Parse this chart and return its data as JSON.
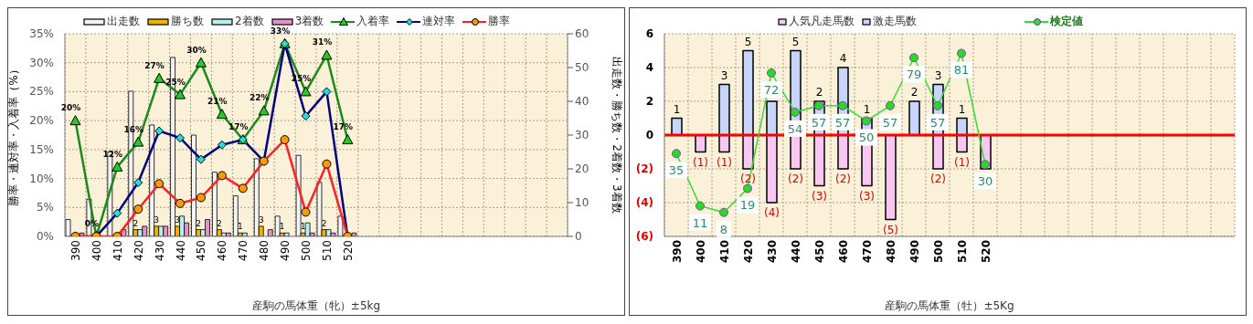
{
  "chart_data": [
    {
      "type": "bar",
      "xlabel": "産駒の馬体重（牝）±5kg",
      "ylabel": "勝率・連対率・入着率（%）",
      "y2label": "出走数・勝ち数・2着数・3着数",
      "categories": [
        "390",
        "400",
        "410",
        "420",
        "430",
        "440",
        "450",
        "460",
        "470",
        "480",
        "490",
        "500",
        "510",
        "520",
        null,
        null,
        null,
        null,
        null,
        null,
        null,
        null,
        null,
        null
      ],
      "ylim": [
        0,
        35
      ],
      "yticks": [
        {
          "value": 0,
          "label": "0%"
        },
        {
          "value": 5,
          "label": "5%"
        },
        {
          "value": 10,
          "label": "10%"
        },
        {
          "value": 15,
          "label": "15%"
        },
        {
          "value": 20,
          "label": "20%"
        },
        {
          "value": 25,
          "label": "25%"
        },
        {
          "value": 30,
          "label": "30%"
        },
        {
          "value": 35,
          "label": "35%"
        }
      ],
      "y2lim": [
        0,
        60
      ],
      "y2ticks": [
        0,
        10,
        20,
        30,
        40,
        50,
        60
      ],
      "grid": true,
      "legend": "top",
      "line_style": "solid",
      "series": [
        {
          "name": "出走数",
          "axis": "y2",
          "color": "#f4f4f4",
          "values": [
            5,
            11,
            25,
            43,
            33,
            53,
            30,
            19,
            12,
            23,
            6,
            24,
            16,
            6,
            null,
            null,
            null,
            null,
            null,
            null,
            null,
            null,
            null,
            null
          ]
        },
        {
          "name": "勝ち数",
          "axis": "y2",
          "color": "#f0b400",
          "values": [
            0,
            0,
            0,
            2,
            3,
            3,
            2,
            2,
            1,
            3,
            1,
            1,
            2,
            0,
            null,
            null,
            null,
            null,
            null,
            null,
            null,
            null,
            null,
            null
          ],
          "value_labels": [
            null,
            null,
            null,
            "2",
            "3",
            "3",
            "2",
            "2",
            "1",
            "3",
            "1",
            "1",
            "2",
            null,
            null,
            null,
            null,
            null,
            null,
            null,
            null,
            null,
            null,
            null
          ]
        },
        {
          "name": "2着数",
          "axis": "y2",
          "color": "#b8f0f0",
          "values": [
            0,
            0,
            0,
            2,
            3,
            6,
            2,
            1,
            1,
            0,
            1,
            4,
            2,
            0,
            null,
            null,
            null,
            null,
            null,
            null,
            null,
            null,
            null,
            null
          ]
        },
        {
          "name": "3着数",
          "axis": "y2",
          "color": "#e890c8",
          "values": [
            1,
            0,
            2,
            3,
            3,
            4,
            5,
            1,
            0,
            2,
            0,
            1,
            1,
            1,
            null,
            null,
            null,
            null,
            null,
            null,
            null,
            null,
            null,
            null
          ]
        },
        {
          "name": "入着率",
          "type": "line",
          "axis": "y",
          "color": "#1a8a1a",
          "marker": "triangle",
          "values": [
            20,
            0,
            12,
            16.3,
            27.3,
            24.5,
            30,
            21.1,
            16.7,
            21.7,
            33.3,
            25,
            31.3,
            16.7,
            null,
            null,
            null,
            null,
            null,
            null,
            null,
            null,
            null,
            null
          ],
          "value_labels": [
            "20%",
            "0%",
            "12%",
            "16%",
            "27%",
            "25%",
            "30%",
            "21%",
            "17%",
            "22%",
            "33%",
            "25%",
            "31%",
            "17%",
            null,
            null,
            null,
            null,
            null,
            null,
            null,
            null,
            null,
            null
          ]
        },
        {
          "name": "連対率",
          "type": "line",
          "axis": "y",
          "color": "#000080",
          "marker": "diamond",
          "values": [
            0,
            0,
            4,
            9.3,
            18.2,
            17,
            13.3,
            15.8,
            16.7,
            13,
            33.3,
            20.8,
            25,
            0,
            null,
            null,
            null,
            null,
            null,
            null,
            null,
            null,
            null,
            null
          ]
        },
        {
          "name": "勝率",
          "type": "line",
          "axis": "y",
          "color": "#ff2020",
          "marker": "circle",
          "values": [
            0,
            0,
            0,
            4.7,
            9.1,
            5.7,
            6.7,
            10.5,
            8.3,
            13,
            16.7,
            4.2,
            12.5,
            0,
            null,
            null,
            null,
            null,
            null,
            null,
            null,
            null,
            null,
            null
          ]
        }
      ]
    },
    {
      "type": "bar",
      "stacked": true,
      "xlabel": "産駒の馬体重（牡）±5Kg",
      "categories": [
        "390",
        "400",
        "410",
        "420",
        "430",
        "440",
        "450",
        "460",
        "470",
        "480",
        "490",
        "500",
        "510",
        "520",
        null,
        null,
        null,
        null,
        null,
        null,
        null,
        null,
        null,
        null
      ],
      "ylim": [
        -6,
        6
      ],
      "yticks": [
        {
          "value": -6,
          "label": "(6)"
        },
        {
          "value": -4,
          "label": "(4)"
        },
        {
          "value": -2,
          "label": "(2)"
        },
        0,
        2,
        4,
        6
      ],
      "y2lim": [
        -3,
        90
      ],
      "grid": true,
      "legend": "top",
      "line_style": "solid",
      "ref_lines": [
        {
          "axis": "y",
          "value": 0,
          "color": "#ff0000"
        }
      ],
      "series": [
        {
          "name": "人気凡走馬数",
          "axis": "y",
          "color": "#f8c8f0",
          "values": [
            0,
            -1,
            -1,
            -2,
            -4,
            -2,
            -3,
            -2,
            -3,
            -5,
            0,
            -2,
            -1,
            -2,
            null,
            null,
            null,
            null,
            null,
            null,
            null,
            null,
            null,
            null
          ],
          "value_labels": [
            null,
            "(1)",
            "(1)",
            "(2)",
            "(4)",
            "(2)",
            "(3)",
            "(2)",
            "(3)",
            "(5)",
            null,
            "(2)",
            "(1)",
            null,
            null,
            null,
            null,
            null,
            null,
            null,
            null,
            null,
            null,
            null
          ]
        },
        {
          "name": "激走馬数",
          "axis": "y",
          "color": "#c8d4f8",
          "values": [
            1,
            0,
            3,
            5,
            2,
            5,
            2,
            4,
            1,
            0,
            2,
            3,
            1,
            0,
            null,
            null,
            null,
            null,
            null,
            null,
            null,
            null,
            null,
            null
          ],
          "value_labels": [
            "1",
            null,
            "3",
            "5",
            null,
            "5",
            "2",
            "4",
            "1",
            null,
            "2",
            "3",
            "1",
            null,
            null,
            null,
            null,
            null,
            null,
            null,
            null,
            null,
            null,
            null
          ]
        },
        {
          "name": "検定値",
          "type": "line",
          "axis": "y2",
          "color": "#33dd33",
          "marker": "circle",
          "values": [
            35,
            11,
            8,
            19,
            72,
            54,
            57,
            57,
            50,
            57,
            79,
            57,
            81,
            30,
            null,
            null,
            null,
            null,
            null,
            null,
            null,
            null,
            null,
            null
          ],
          "value_labels": [
            "35",
            "11",
            "8",
            "19",
            "72",
            "54",
            "57",
            "57",
            "50",
            "57",
            "79",
            "57",
            "81",
            "30",
            null,
            null,
            null,
            null,
            null,
            null,
            null,
            null,
            null,
            null
          ]
        }
      ]
    }
  ]
}
